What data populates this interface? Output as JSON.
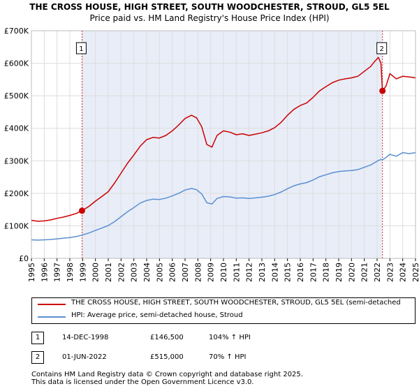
{
  "chart_data": {
    "type": "line",
    "title": "THE CROSS HOUSE, HIGH STREET, SOUTH WOODCHESTER, STROUD, GL5 5EL",
    "subtitle": "Price paid vs. HM Land Registry's House Price Index (HPI)",
    "ylim": [
      0,
      700000
    ],
    "xlim": [
      1995,
      2025
    ],
    "y_ticks": [
      {
        "value": 0,
        "label": "£0"
      },
      {
        "value": 100000,
        "label": "£100K"
      },
      {
        "value": 200000,
        "label": "£200K"
      },
      {
        "value": 300000,
        "label": "£300K"
      },
      {
        "value": 400000,
        "label": "£400K"
      },
      {
        "value": 500000,
        "label": "£500K"
      },
      {
        "value": 600000,
        "label": "£600K"
      },
      {
        "value": 700000,
        "label": "£700K"
      }
    ],
    "x_ticks": [
      "1995",
      "1996",
      "1997",
      "1998",
      "1999",
      "2000",
      "2001",
      "2002",
      "2003",
      "2004",
      "2005",
      "2006",
      "2007",
      "2008",
      "2009",
      "2010",
      "2011",
      "2012",
      "2013",
      "2014",
      "2015",
      "2016",
      "2017",
      "2018",
      "2019",
      "2020",
      "2021",
      "2022",
      "2023",
      "2024",
      "2025"
    ],
    "shaded_region": [
      1998.95,
      2022.42
    ],
    "grid": true,
    "series": [
      {
        "name": "THE CROSS HOUSE, HIGH STREET, SOUTH WOODCHESTER, STROUD, GL5 5EL (semi-detached",
        "color": "#cc0000",
        "x": [
          1995.0,
          1995.5,
          1996.0,
          1996.5,
          1997.0,
          1997.5,
          1998.0,
          1998.5,
          1998.95,
          1999.5,
          2000.0,
          2000.5,
          2001.0,
          2001.5,
          2002.0,
          2002.5,
          2003.0,
          2003.5,
          2004.0,
          2004.5,
          2005.0,
          2005.5,
          2006.0,
          2006.5,
          2007.0,
          2007.5,
          2007.9,
          2008.3,
          2008.7,
          2009.1,
          2009.5,
          2010.0,
          2010.5,
          2011.0,
          2011.5,
          2012.0,
          2012.5,
          2013.0,
          2013.5,
          2014.0,
          2014.5,
          2015.0,
          2015.5,
          2016.0,
          2016.5,
          2017.0,
          2017.5,
          2018.0,
          2018.5,
          2019.0,
          2019.5,
          2020.0,
          2020.5,
          2021.0,
          2021.5,
          2021.8,
          2022.1,
          2022.3,
          2022.42,
          2022.7,
          2023.0,
          2023.5,
          2024.0,
          2024.5,
          2025.0
        ],
        "values": [
          117000,
          114000,
          115000,
          118000,
          123000,
          127000,
          132000,
          138000,
          146500,
          160000,
          176000,
          190000,
          205000,
          232000,
          262000,
          292000,
          318000,
          345000,
          365000,
          372000,
          370000,
          378000,
          392000,
          410000,
          430000,
          440000,
          432000,
          405000,
          350000,
          342000,
          378000,
          392000,
          388000,
          380000,
          383000,
          378000,
          382000,
          386000,
          392000,
          402000,
          418000,
          440000,
          458000,
          470000,
          478000,
          495000,
          515000,
          528000,
          540000,
          548000,
          552000,
          555000,
          560000,
          575000,
          590000,
          605000,
          618000,
          600000,
          515000,
          530000,
          568000,
          552000,
          560000,
          558000,
          555000
        ]
      },
      {
        "name": "HPI: Average price, semi-detached house, Stroud",
        "color": "#5b8fd0",
        "x": [
          1995.0,
          1995.5,
          1996.0,
          1996.5,
          1997.0,
          1997.5,
          1998.0,
          1998.5,
          1998.95,
          1999.5,
          2000.0,
          2000.5,
          2001.0,
          2001.5,
          2002.0,
          2002.5,
          2003.0,
          2003.5,
          2004.0,
          2004.5,
          2005.0,
          2005.5,
          2006.0,
          2006.5,
          2007.0,
          2007.5,
          2007.9,
          2008.3,
          2008.7,
          2009.1,
          2009.5,
          2010.0,
          2010.5,
          2011.0,
          2011.5,
          2012.0,
          2012.5,
          2013.0,
          2013.5,
          2014.0,
          2014.5,
          2015.0,
          2015.5,
          2016.0,
          2016.5,
          2017.0,
          2017.5,
          2018.0,
          2018.5,
          2019.0,
          2019.5,
          2020.0,
          2020.5,
          2021.0,
          2021.5,
          2021.8,
          2022.1,
          2022.3,
          2022.42,
          2022.7,
          2023.0,
          2023.5,
          2024.0,
          2024.5,
          2025.0
        ],
        "values": [
          57000,
          56000,
          57000,
          58000,
          60000,
          62000,
          64000,
          67000,
          71700,
          78000,
          86000,
          93000,
          101000,
          113000,
          128000,
          143000,
          156000,
          170000,
          178000,
          182000,
          181000,
          185000,
          192000,
          200000,
          210000,
          215000,
          211000,
          198000,
          171000,
          167000,
          184000,
          190000,
          189000,
          185000,
          186000,
          184000,
          186000,
          188000,
          191000,
          196000,
          204000,
          214000,
          223000,
          229000,
          233000,
          241000,
          251000,
          257000,
          263000,
          267000,
          269000,
          270000,
          273000,
          280000,
          287000,
          294000,
          301000,
          304000,
          303000,
          310000,
          320000,
          314000,
          325000,
          322000,
          325000
        ]
      }
    ],
    "sales": [
      {
        "num": "1",
        "date": "14-DEC-1998",
        "price": "£146,500",
        "hpi": "104% ↑ HPI",
        "x": 1998.95,
        "value": 146500
      },
      {
        "num": "2",
        "date": "01-JUN-2022",
        "price": "£515,000",
        "hpi": "70% ↑ HPI",
        "x": 2022.42,
        "value": 515000
      }
    ]
  },
  "footer": {
    "line1": "Contains HM Land Registry data © Crown copyright and database right 2025.",
    "line2": "This data is licensed under the Open Government Licence v3.0."
  }
}
